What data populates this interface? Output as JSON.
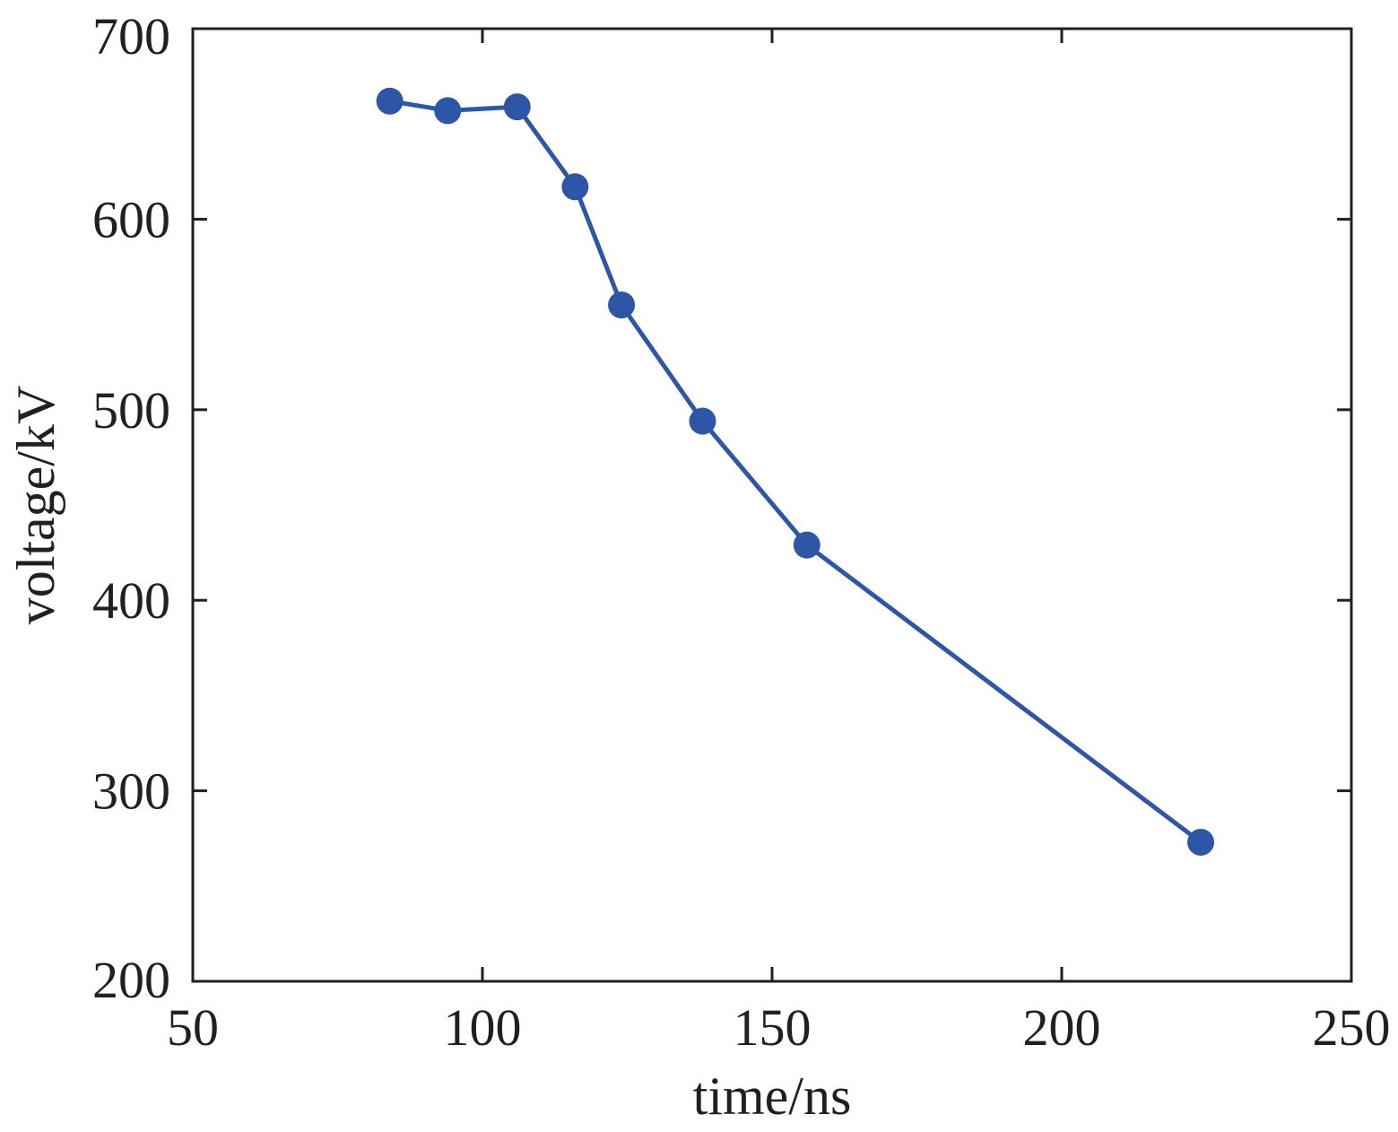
{
  "chart_data": {
    "type": "line",
    "title": "",
    "xlabel": "time/ns",
    "ylabel": "voltage/kV",
    "xlim": [
      50,
      250
    ],
    "ylim": [
      200,
      700
    ],
    "xticks": [
      50,
      100,
      150,
      200,
      250
    ],
    "yticks": [
      200,
      300,
      400,
      500,
      600,
      700
    ],
    "grid": false,
    "legend": "none",
    "series": [
      {
        "color": "#2e56a6",
        "marker": "circle",
        "x": [
          84,
          94,
          106,
          116,
          124,
          138,
          156,
          224
        ],
        "y": [
          662,
          657,
          659,
          617,
          555,
          494,
          429,
          273
        ]
      }
    ]
  }
}
